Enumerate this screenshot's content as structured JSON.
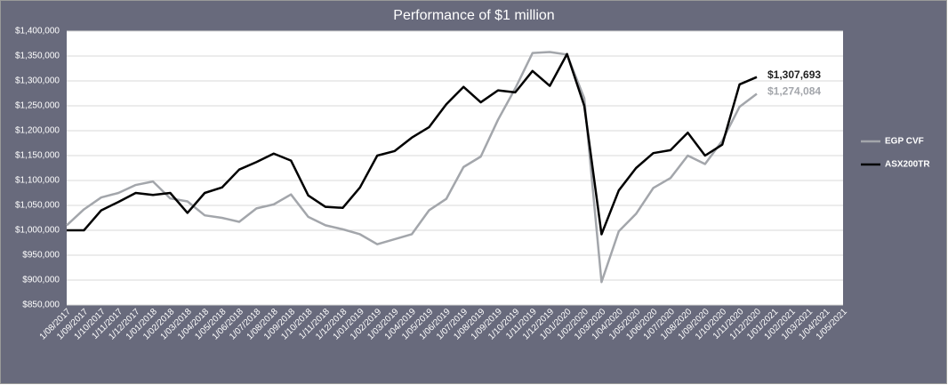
{
  "chart_data": {
    "type": "line",
    "title": "Performance of $1 million",
    "categories": [
      "1/08/2017",
      "1/09/2017",
      "1/10/2017",
      "1/11/2017",
      "1/12/2017",
      "1/01/2018",
      "1/02/2018",
      "1/03/2018",
      "1/04/2018",
      "1/05/2018",
      "1/06/2018",
      "1/07/2018",
      "1/08/2018",
      "1/09/2018",
      "1/10/2018",
      "1/11/2018",
      "1/12/2018",
      "1/01/2019",
      "1/02/2019",
      "1/03/2019",
      "1/04/2019",
      "1/05/2019",
      "1/06/2019",
      "1/07/2019",
      "1/08/2019",
      "1/09/2019",
      "1/10/2019",
      "1/11/2019",
      "1/12/2019",
      "1/01/2020",
      "1/02/2020",
      "1/03/2020",
      "1/04/2020",
      "1/05/2020",
      "1/06/2020",
      "1/07/2020",
      "1/08/2020",
      "1/09/2020",
      "1/10/2020",
      "1/11/2020",
      "1/12/2020",
      "1/01/2021",
      "1/02/2021",
      "1/03/2021",
      "1/04/2021",
      "1/05/2021"
    ],
    "series": [
      {
        "name": "EGP CVF",
        "color": "#a3a6ab",
        "values": [
          1010000,
          1042000,
          1066000,
          1075000,
          1091000,
          1098000,
          1064000,
          1058000,
          1030000,
          1025000,
          1017000,
          1044000,
          1052000,
          1072000,
          1027000,
          1010000,
          1002000,
          992000,
          972000,
          982000,
          992000,
          1040000,
          1063000,
          1127000,
          1148000,
          1222000,
          1285000,
          1356000,
          1358000,
          1353000,
          1265000,
          896000,
          998000,
          1033000,
          1085000,
          1105000,
          1150000,
          1133000,
          1180000,
          1248000,
          1274084,
          null,
          null,
          null,
          null,
          null
        ],
        "value_labels": [
          null,
          null,
          null,
          null,
          null,
          null,
          null,
          null,
          null,
          null,
          null,
          null,
          null,
          null,
          null,
          null,
          null,
          null,
          null,
          null,
          null,
          null,
          null,
          null,
          null,
          null,
          null,
          null,
          null,
          null,
          null,
          null,
          null,
          null,
          null,
          null,
          null,
          null,
          null,
          null,
          "$1,274,084",
          null,
          null,
          null,
          null,
          null
        ]
      },
      {
        "name": "ASX200TR",
        "color": "#000000",
        "values": [
          1000000,
          1000000,
          1040000,
          1057000,
          1075000,
          1071000,
          1075000,
          1035000,
          1075000,
          1086000,
          1122000,
          1137000,
          1154000,
          1140000,
          1070000,
          1047000,
          1045000,
          1086000,
          1150000,
          1159000,
          1186000,
          1207000,
          1253000,
          1288000,
          1257000,
          1281000,
          1277000,
          1320000,
          1290000,
          1354000,
          1250000,
          992000,
          1080000,
          1125000,
          1155000,
          1161000,
          1196000,
          1150000,
          1172000,
          1293000,
          1307693,
          null,
          null,
          null,
          null,
          null
        ],
        "value_labels": [
          null,
          null,
          null,
          null,
          null,
          null,
          null,
          null,
          null,
          null,
          null,
          null,
          null,
          null,
          null,
          null,
          null,
          null,
          null,
          null,
          null,
          null,
          null,
          null,
          null,
          null,
          null,
          null,
          null,
          null,
          null,
          null,
          null,
          null,
          null,
          null,
          null,
          null,
          null,
          null,
          "$1,307,693",
          null,
          null,
          null,
          null,
          null
        ]
      }
    ],
    "ylim": [
      850000,
      1400000
    ],
    "yticks": [
      {
        "value": 850000,
        "label": "$850,000"
      },
      {
        "value": 900000,
        "label": "$900,000"
      },
      {
        "value": 950000,
        "label": "$950,000"
      },
      {
        "value": 1000000,
        "label": "$1,000,000"
      },
      {
        "value": 1050000,
        "label": "$1,050,000"
      },
      {
        "value": 1100000,
        "label": "$1,100,000"
      },
      {
        "value": 1150000,
        "label": "$1,150,000"
      },
      {
        "value": 1200000,
        "label": "$1,200,000"
      },
      {
        "value": 1250000,
        "label": "$1,250,000"
      },
      {
        "value": 1300000,
        "label": "$1,300,000"
      },
      {
        "value": 1350000,
        "label": "$1,350,000"
      },
      {
        "value": 1400000,
        "label": "$1,400,000"
      }
    ],
    "grid": true,
    "legend": "right"
  }
}
